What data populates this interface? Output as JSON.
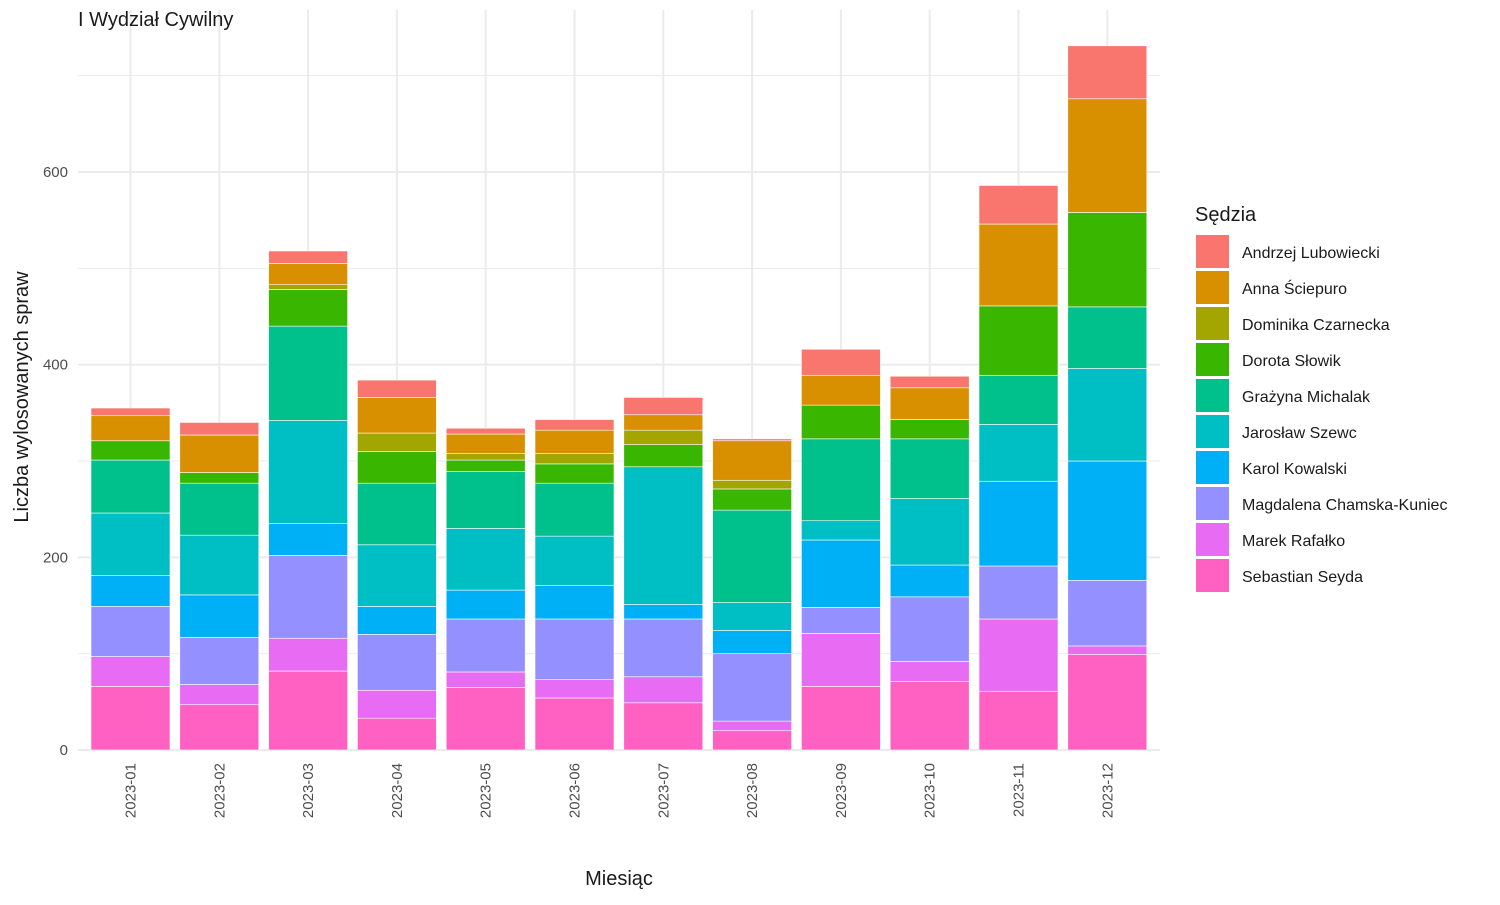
{
  "chart_data": {
    "type": "bar",
    "stacked": true,
    "title": "I Wydział Cywilny",
    "xlabel": "Miesiąc",
    "ylabel": "Liczba wylosowanych spraw",
    "ylim": [
      0,
      730
    ],
    "yticks": [
      0,
      200,
      400,
      600
    ],
    "grid": true,
    "legend_title": "Sędzia",
    "legend_position": "right",
    "categories": [
      "2023-01",
      "2023-02",
      "2023-03",
      "2023-04",
      "2023-05",
      "2023-06",
      "2023-07",
      "2023-08",
      "2023-09",
      "2023-10",
      "2023-11",
      "2023-12"
    ],
    "series": [
      {
        "name": "Sebastian Seyda",
        "color": "#FF61C3",
        "values": [
          66,
          47,
          82,
          33,
          65,
          54,
          49,
          20,
          66,
          71,
          61,
          99
        ]
      },
      {
        "name": "Marek Rafałko",
        "color": "#E76BF3",
        "values": [
          31,
          21,
          34,
          29,
          16,
          19,
          27,
          10,
          55,
          21,
          75,
          9
        ]
      },
      {
        "name": "Magdalena Chamska-Kuniec",
        "color": "#9590FF",
        "values": [
          52,
          49,
          86,
          58,
          55,
          63,
          60,
          70,
          27,
          67,
          55,
          68
        ]
      },
      {
        "name": "Karol Kowalski",
        "color": "#00B0F6",
        "values": [
          32,
          44,
          33,
          29,
          30,
          35,
          15,
          24,
          70,
          33,
          88,
          124
        ]
      },
      {
        "name": "Jarosław Szewc",
        "color": "#00BFC4",
        "values": [
          65,
          62,
          107,
          64,
          64,
          51,
          143,
          29,
          20,
          69,
          59,
          96
        ]
      },
      {
        "name": "Grażyna Michalak",
        "color": "#00C08B",
        "values": [
          55,
          54,
          98,
          64,
          59,
          55,
          0,
          96,
          85,
          62,
          51,
          64
        ]
      },
      {
        "name": "Dorota Słowik",
        "color": "#39B600",
        "values": [
          20,
          11,
          38,
          33,
          12,
          20,
          23,
          22,
          35,
          20,
          72,
          98
        ]
      },
      {
        "name": "Dominika Czarnecka",
        "color": "#A3A500",
        "values": [
          0,
          0,
          5,
          19,
          7,
          11,
          15,
          9,
          0,
          0,
          0,
          0
        ]
      },
      {
        "name": "Anna Ściepuro",
        "color": "#D89000",
        "values": [
          26,
          39,
          22,
          37,
          20,
          24,
          16,
          41,
          31,
          33,
          85,
          118
        ]
      },
      {
        "name": "Andrzej Lubowiecki",
        "color": "#F8766D",
        "values": [
          8,
          13,
          13,
          18,
          6,
          11,
          18,
          2,
          27,
          12,
          40,
          55
        ]
      }
    ]
  }
}
